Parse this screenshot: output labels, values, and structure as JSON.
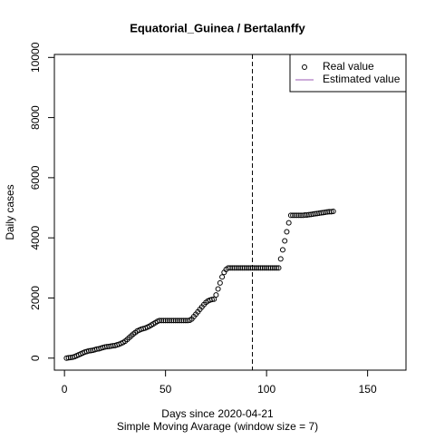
{
  "chart_data": {
    "type": "scatter",
    "title": "Equatorial_Guinea / Bertalanffy",
    "xlabel": "Days since 2020-04-21",
    "subtitle": "Simple Moving Avarage (window size = 7)",
    "ylabel": "Daily cases",
    "xlim": [
      -5,
      169
    ],
    "ylim": [
      -400,
      10100
    ],
    "xticks": [
      0,
      50,
      100,
      150
    ],
    "yticks": [
      0,
      2000,
      4000,
      6000,
      8000,
      10000
    ],
    "vline": 93,
    "legend_corner": "topright",
    "series": [
      {
        "name": "Real value",
        "color": "#000000",
        "marker": "circle",
        "x": [
          1,
          2,
          3,
          4,
          5,
          6,
          7,
          8,
          9,
          10,
          11,
          12,
          13,
          14,
          15,
          16,
          17,
          18,
          19,
          20,
          21,
          22,
          23,
          24,
          25,
          26,
          27,
          28,
          29,
          30,
          31,
          32,
          33,
          34,
          35,
          36,
          37,
          38,
          39,
          40,
          41,
          42,
          43,
          44,
          45,
          46,
          47,
          48,
          49,
          50,
          51,
          52,
          53,
          54,
          55,
          56,
          57,
          58,
          59,
          60,
          61,
          62,
          63,
          64,
          65,
          66,
          67,
          68,
          69,
          70,
          71,
          72,
          73,
          74,
          75,
          76,
          77,
          78,
          79,
          80,
          81,
          82,
          83,
          84,
          85,
          86,
          87,
          88,
          89,
          90,
          91,
          92,
          93,
          94,
          95,
          96,
          97,
          98,
          99,
          100,
          101,
          102,
          103,
          104,
          105,
          106,
          107,
          108,
          109,
          110,
          111,
          112,
          113,
          114,
          115,
          116,
          117,
          118,
          119,
          120,
          121,
          122,
          123,
          124,
          125,
          126,
          127,
          128,
          129,
          130,
          131,
          132,
          133
        ],
        "values": [
          0,
          10,
          20,
          30,
          50,
          80,
          110,
          140,
          170,
          200,
          220,
          240,
          250,
          260,
          280,
          300,
          310,
          330,
          350,
          370,
          380,
          390,
          400,
          410,
          420,
          440,
          460,
          490,
          520,
          560,
          620,
          680,
          740,
          800,
          850,
          900,
          930,
          960,
          980,
          1000,
          1030,
          1060,
          1100,
          1140,
          1180,
          1220,
          1250,
          1250,
          1250,
          1250,
          1250,
          1250,
          1250,
          1250,
          1250,
          1250,
          1250,
          1250,
          1250,
          1250,
          1250,
          1260,
          1300,
          1380,
          1460,
          1540,
          1620,
          1700,
          1780,
          1850,
          1900,
          1930,
          1950,
          1960,
          2100,
          2300,
          2500,
          2700,
          2850,
          2950,
          3000,
          3000,
          3000,
          3000,
          3000,
          3000,
          3000,
          3000,
          3000,
          3000,
          3000,
          3000,
          3000,
          3000,
          3000,
          3000,
          3000,
          3000,
          3000,
          3000,
          3000,
          3000,
          3000,
          3000,
          3000,
          3000,
          3300,
          3600,
          3900,
          4200,
          4500,
          4750,
          4750,
          4750,
          4750,
          4750,
          4750,
          4750,
          4760,
          4760,
          4770,
          4780,
          4790,
          4800,
          4810,
          4820,
          4830,
          4840,
          4850,
          4860,
          4870,
          4870,
          4880
        ]
      },
      {
        "name": "Estimated value",
        "color": "#9b59b6",
        "marker": "line",
        "x": [],
        "values": []
      }
    ]
  }
}
